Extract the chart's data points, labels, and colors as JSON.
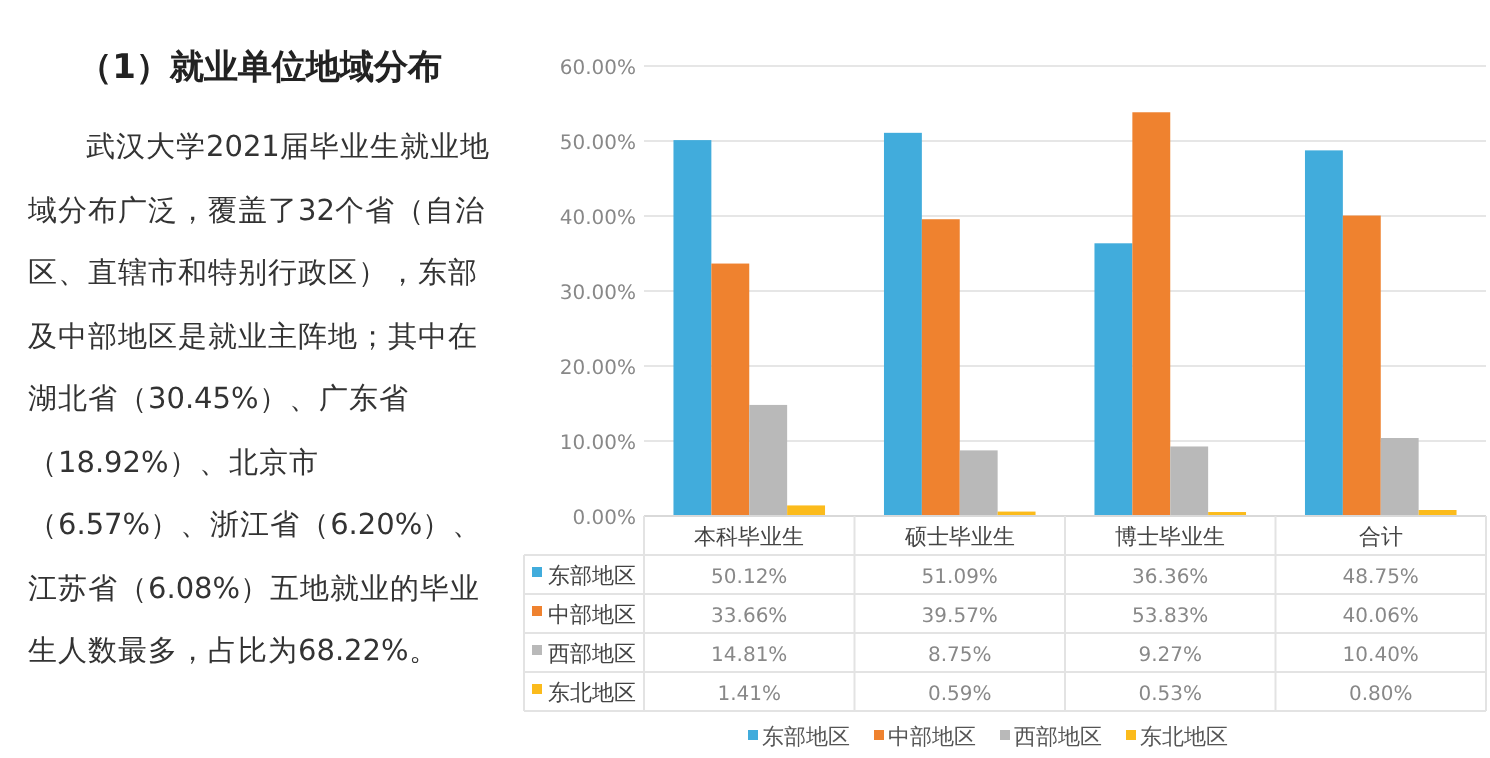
{
  "chart_data": {
    "type": "bar",
    "title": "（1）就业单位地域分布",
    "annotations": [
      "武汉大学2021届毕业生就业地域分布广泛，覆盖了32个省（自治区、直辖市和特别行政区），东部及中部地区是就业主阵地；其中在湖北省（30.45%）、广东省（18.92%）、北京市（6.57%）、浙江省（6.20%）、江苏省（6.08%）五地就业的毕业生人数最多，占比为68.22%。"
    ],
    "categories": [
      "本科毕业生",
      "硕士毕业生",
      "博士毕业生",
      "合计"
    ],
    "series": [
      {
        "name": "东部地区",
        "color": "#41acdc",
        "values": [
          50.12,
          51.09,
          36.36,
          48.75
        ],
        "value_labels": [
          "50.12%",
          "51.09%",
          "36.36%",
          "48.75%"
        ]
      },
      {
        "name": "中部地区",
        "color": "#ef822f",
        "values": [
          33.66,
          39.57,
          53.83,
          40.06
        ],
        "value_labels": [
          "33.66%",
          "39.57%",
          "53.83%",
          "40.06%"
        ]
      },
      {
        "name": "西部地区",
        "color": "#b9b9b9",
        "values": [
          14.81,
          8.75,
          9.27,
          10.4
        ],
        "value_labels": [
          "14.81%",
          "8.75%",
          "9.27%",
          "10.40%"
        ]
      },
      {
        "name": "东北地区",
        "color": "#fbbb1c",
        "values": [
          1.41,
          0.59,
          0.53,
          0.8
        ],
        "value_labels": [
          "1.41%",
          "0.59%",
          "0.53%",
          "0.80%"
        ]
      }
    ],
    "ylim": [
      0,
      60
    ],
    "yticks": [
      {
        "value": 0,
        "label": "0.00%"
      },
      {
        "value": 10,
        "label": "10.00%"
      },
      {
        "value": 20,
        "label": "20.00%"
      },
      {
        "value": 30,
        "label": "30.00%"
      },
      {
        "value": 40,
        "label": "40.00%"
      },
      {
        "value": 50,
        "label": "50.00%"
      },
      {
        "value": 60,
        "label": "60.00%"
      }
    ],
    "grid": "y",
    "legend": "bottom"
  }
}
